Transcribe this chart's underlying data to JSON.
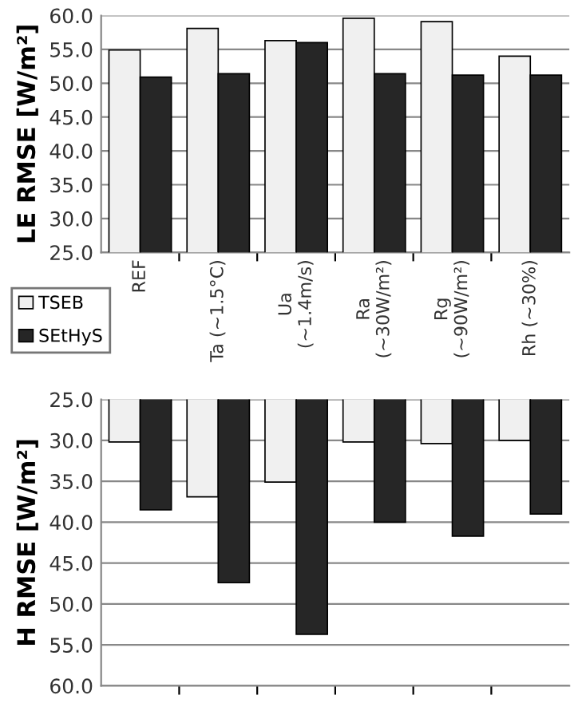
{
  "chart_data": [
    {
      "type": "bar",
      "ylabel": "LE RMSE [W/m²]",
      "categories": [
        "REF",
        "Ta (~1.5°C)",
        "Ua\n(~1.4m/s)",
        "Ra\n(~30W/m²)",
        "Rg\n(~90W/m²)",
        "Rh (~30%)"
      ],
      "series": [
        {
          "name": "TSEB",
          "color": "#f0f0f0",
          "values": [
            54.9,
            58.1,
            56.3,
            59.6,
            59.1,
            54.0
          ]
        },
        {
          "name": "SEtHyS",
          "color": "#262626",
          "values": [
            50.9,
            51.4,
            56.0,
            51.4,
            51.2,
            51.2
          ]
        }
      ],
      "ylim": [
        25,
        60
      ],
      "yticks": [
        {
          "value": 25,
          "label": "25.0"
        },
        {
          "value": 30,
          "label": "30.0"
        },
        {
          "value": 35,
          "label": "35.0"
        },
        {
          "value": 40,
          "label": "40.0"
        },
        {
          "value": 45,
          "label": "45.0"
        },
        {
          "value": 50,
          "label": "50.0"
        },
        {
          "value": 55,
          "label": "55.0"
        },
        {
          "value": 60,
          "label": "60.0"
        }
      ],
      "grid": "y",
      "legend": "bottom left"
    },
    {
      "type": "bar",
      "ylabel": "H RMSE [W/m²]",
      "categories": [
        null,
        null,
        null,
        null,
        null,
        null
      ],
      "series": [
        {
          "color": "#f0f0f0",
          "values": [
            30.2,
            36.9,
            35.1,
            30.2,
            30.4,
            30.0
          ]
        },
        {
          "color": "#262626",
          "values": [
            38.5,
            47.4,
            53.7,
            40.0,
            41.7,
            39.0
          ]
        }
      ],
      "ylim": [
        60,
        25
      ],
      "yticks": [
        {
          "value": 60,
          "label": "60.0"
        },
        {
          "value": 55,
          "label": "55.0"
        },
        {
          "value": 50,
          "label": "50.0"
        },
        {
          "value": 45,
          "label": "45.0"
        },
        {
          "value": 40,
          "label": "40.0"
        },
        {
          "value": 35,
          "label": "35.0"
        },
        {
          "value": 30,
          "label": "30.0"
        },
        {
          "value": 25,
          "label": "25.0"
        }
      ],
      "grid": "y"
    }
  ]
}
